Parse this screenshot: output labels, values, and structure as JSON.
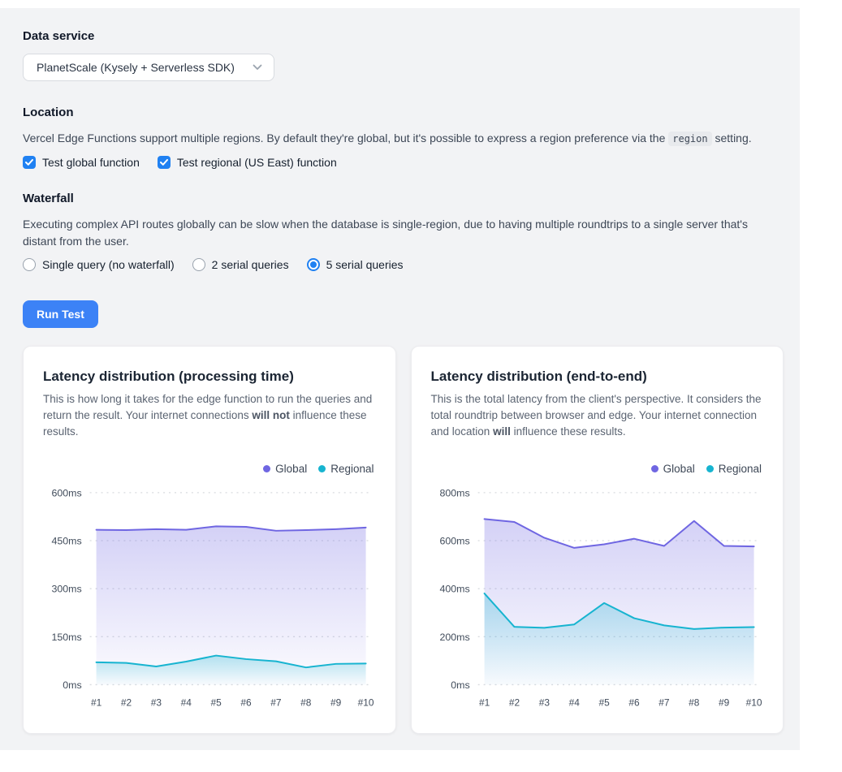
{
  "page": {
    "data_service": {
      "heading": "Data service",
      "select_value": "PlanetScale (Kysely + Serverless SDK)"
    },
    "location": {
      "heading": "Location",
      "desc_pre": "Vercel Edge Functions support multiple regions. By default they're global, but it's possible to express a region preference via the ",
      "desc_code": "region",
      "desc_post": " setting.",
      "checkboxes": [
        {
          "label": "Test global function",
          "checked": true
        },
        {
          "label": "Test regional (US East) function",
          "checked": true
        }
      ]
    },
    "waterfall": {
      "heading": "Waterfall",
      "desc": "Executing complex API routes globally can be slow when the database is single-region, due to having multiple roundtrips to a single server that's distant from the user.",
      "radios": [
        {
          "label": "Single query (no waterfall)",
          "checked": false
        },
        {
          "label": "2 serial queries",
          "checked": false
        },
        {
          "label": "5 serial queries",
          "checked": true
        }
      ]
    },
    "run_button": "Run Test"
  },
  "colors": {
    "accent_blue": "#3c82f6",
    "control_blue": "#2081f2",
    "global_purple": "#6f66e2",
    "regional_cyan": "#17b4d0",
    "grid": "#d8dbdf",
    "axis_text": "#414c5b"
  },
  "cards": [
    {
      "title": "Latency distribution (processing time)",
      "desc_pre": "This is how long it takes for the edge function to run the queries and return the result. Your internet connections ",
      "desc_bold": "will not",
      "desc_post": " influence these results."
    },
    {
      "title": "Latency distribution (end-to-end)",
      "desc_pre": "This is the total latency from the client's perspective. It considers the total roundtrip between browser and edge. Your internet connection and location ",
      "desc_bold": "will",
      "desc_post": " influence these results."
    }
  ],
  "chart_data": [
    {
      "type": "area",
      "title": "Latency distribution (processing time)",
      "categories": [
        "#1",
        "#2",
        "#3",
        "#4",
        "#5",
        "#6",
        "#7",
        "#8",
        "#9",
        "#10"
      ],
      "series": [
        {
          "name": "Global",
          "color": "#6f66e2",
          "values": [
            484,
            483,
            486,
            484,
            495,
            493,
            481,
            483,
            486,
            491
          ]
        },
        {
          "name": "Regional",
          "color": "#17b4d0",
          "values": [
            70,
            68,
            57,
            72,
            91,
            80,
            73,
            54,
            65,
            66
          ]
        }
      ],
      "ylim": [
        0,
        600
      ],
      "yticks": [
        600,
        450,
        300,
        150,
        0
      ],
      "ytick_labels": [
        "600ms",
        "450ms",
        "300ms",
        "150ms",
        "0ms"
      ],
      "unit": "ms",
      "grid": "dashed-horizontal",
      "legend_position": "top-right"
    },
    {
      "type": "area",
      "title": "Latency distribution (end-to-end)",
      "categories": [
        "#1",
        "#2",
        "#3",
        "#4",
        "#5",
        "#6",
        "#7",
        "#8",
        "#9",
        "#10"
      ],
      "series": [
        {
          "name": "Global",
          "color": "#6f66e2",
          "values": [
            690,
            678,
            612,
            570,
            585,
            608,
            578,
            682,
            578,
            576
          ]
        },
        {
          "name": "Regional",
          "color": "#17b4d0",
          "values": [
            380,
            241,
            237,
            251,
            340,
            277,
            247,
            232,
            238,
            240
          ]
        }
      ],
      "ylim": [
        0,
        800
      ],
      "yticks": [
        800,
        600,
        400,
        200,
        0
      ],
      "ytick_labels": [
        "800ms",
        "600ms",
        "400ms",
        "200ms",
        "0ms"
      ],
      "unit": "ms",
      "grid": "dashed-horizontal",
      "legend_position": "top-right"
    }
  ]
}
